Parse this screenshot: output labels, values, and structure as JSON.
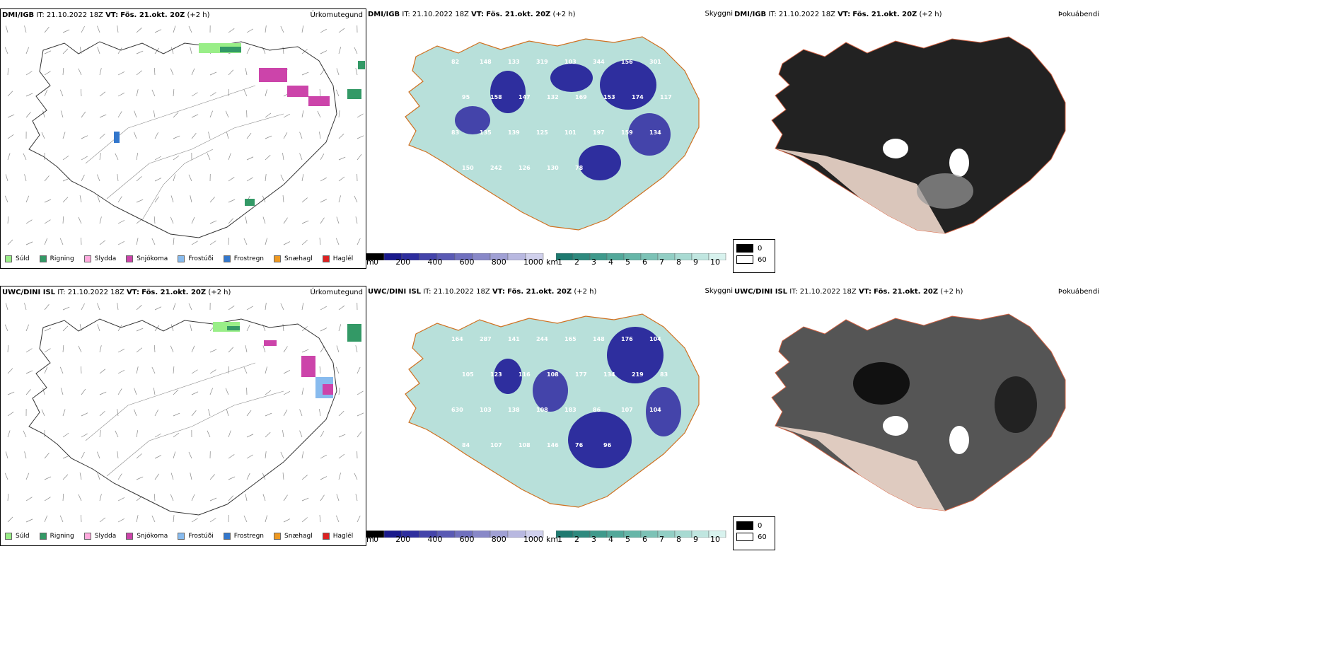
{
  "rows": [
    {
      "model": "DMI/IGB",
      "it_label": "IT:",
      "it_value": "21.10.2022 18Z",
      "vt_label": "VT:",
      "vt_value": "Fös. 21.okt. 20Z",
      "lead": "(+2 h)"
    },
    {
      "model": "UWC/DINI ISL",
      "it_label": "IT:",
      "it_value": "21.10.2022 18Z",
      "vt_label": "VT:",
      "vt_value": "Fös. 21.okt. 20Z",
      "lead": "(+2 h)"
    }
  ],
  "panels": {
    "precip_title": "Úrkomutegund",
    "visibility_title": "Skyggni",
    "fog_title": "Þokuábendi"
  },
  "precip_legend": [
    {
      "label": "Súld",
      "color": "#99ee88"
    },
    {
      "label": "Rigning",
      "color": "#339966"
    },
    {
      "label": "Slydda",
      "color": "#ffaadd"
    },
    {
      "label": "Snjókoma",
      "color": "#cc44aa"
    },
    {
      "label": "Frostúði",
      "color": "#88bbee"
    },
    {
      "label": "Frostregn",
      "color": "#3377cc"
    },
    {
      "label": "Snæhagl",
      "color": "#ee9922"
    },
    {
      "label": "Haglél",
      "color": "#dd2222"
    }
  ],
  "ceiling_scale": {
    "unit": "m",
    "ticks": [
      "0",
      "200",
      "400",
      "600",
      "800",
      "1000"
    ],
    "colors": [
      "#000000",
      "#1a1a8c",
      "#2e2e9e",
      "#4444aa",
      "#5a5ab4",
      "#7070be",
      "#8888c8",
      "#a0a0d4",
      "#b8b8e0",
      "#d0d0ec"
    ]
  },
  "visibility_scale": {
    "unit": "km",
    "ticks": [
      "1",
      "2",
      "3",
      "4",
      "5",
      "6",
      "7",
      "8",
      "9",
      "10"
    ],
    "colors": [
      "#1e7a70",
      "#2e8a7e",
      "#3f9a8c",
      "#52a89a",
      "#66b6a8",
      "#7cc2b6",
      "#92cec4",
      "#a8dad2",
      "#c0e6e0",
      "#d8f2ee"
    ]
  },
  "fog_legend": [
    {
      "label": "0",
      "color": "#000000"
    },
    {
      "label": "60",
      "color": "#ffffff"
    }
  ],
  "cloud_labels_top": [
    "82",
    "148",
    "133",
    "319",
    "103",
    "344",
    "156",
    "301",
    "95",
    "158",
    "147",
    "132",
    "169",
    "153",
    "174",
    "117",
    "83",
    "135",
    "139",
    "125",
    "101",
    "197",
    "159",
    "134",
    "150",
    "242",
    "126",
    "130",
    "78"
  ],
  "cloud_labels_bottom": [
    "164",
    "287",
    "141",
    "244",
    "165",
    "148",
    "176",
    "104",
    "105",
    "123",
    "116",
    "108",
    "177",
    "134",
    "219",
    "83",
    "630",
    "103",
    "138",
    "108",
    "183",
    "86",
    "107",
    "104",
    "84",
    "107",
    "108",
    "146",
    "76",
    "96"
  ]
}
